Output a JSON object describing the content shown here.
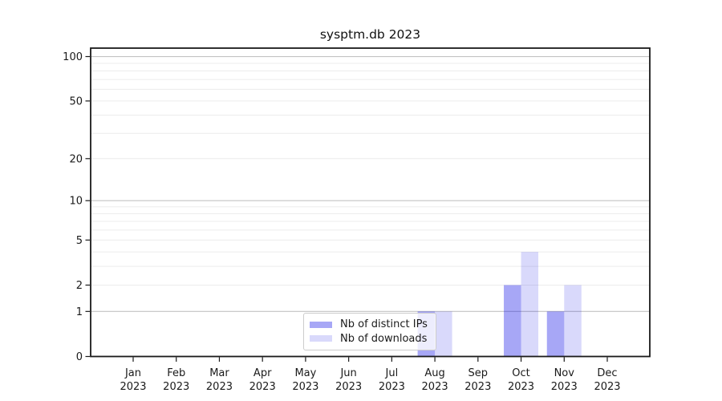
{
  "figure_title": "sysptm.db 2023",
  "chart_data": {
    "type": "bar",
    "title": "sysptm.db 2023",
    "x_tick_labels": [
      {
        "month": "Jan",
        "year": "2023"
      },
      {
        "month": "Feb",
        "year": "2023"
      },
      {
        "month": "Mar",
        "year": "2023"
      },
      {
        "month": "Apr",
        "year": "2023"
      },
      {
        "month": "May",
        "year": "2023"
      },
      {
        "month": "Jun",
        "year": "2023"
      },
      {
        "month": "Jul",
        "year": "2023"
      },
      {
        "month": "Aug",
        "year": "2023"
      },
      {
        "month": "Sep",
        "year": "2023"
      },
      {
        "month": "Oct",
        "year": "2023"
      },
      {
        "month": "Nov",
        "year": "2023"
      },
      {
        "month": "Dec",
        "year": "2023"
      }
    ],
    "series": [
      {
        "name": "Nb of distinct IPs",
        "color": "rgba(10,10,230,0.36)",
        "values": [
          0,
          0,
          0,
          0,
          0,
          0,
          0,
          1,
          0,
          2,
          1,
          0
        ]
      },
      {
        "name": "Nb of downloads",
        "color": "rgba(10,10,230,0.155)",
        "values": [
          0,
          0,
          0,
          0,
          0,
          0,
          0,
          1,
          0,
          4,
          2,
          0
        ]
      }
    ],
    "yscale": "log1p",
    "ylim": [
      0,
      114
    ],
    "yticks": [
      0,
      1,
      2,
      5,
      10,
      20,
      50,
      100
    ],
    "major_gridlines": [
      1,
      10,
      100
    ],
    "minor_gridlines": [
      2,
      3,
      4,
      5,
      6,
      7,
      8,
      9,
      20,
      30,
      40,
      50,
      60,
      70,
      80,
      90
    ],
    "legend": {
      "location": "lower center",
      "labels": [
        "Nb of distinct IPs",
        "Nb of downloads"
      ]
    },
    "grid": true,
    "xlabel": "",
    "ylabel": ""
  },
  "colors": {
    "background": "#ffffff",
    "axis": "#1a1a1a",
    "major_grid": "#c3c3c3",
    "minor_grid": "#ececec",
    "tick_label": "#1a1a1a",
    "legend_border": "#cccccc",
    "legend_background": "rgba(255,255,255,0.8)"
  }
}
